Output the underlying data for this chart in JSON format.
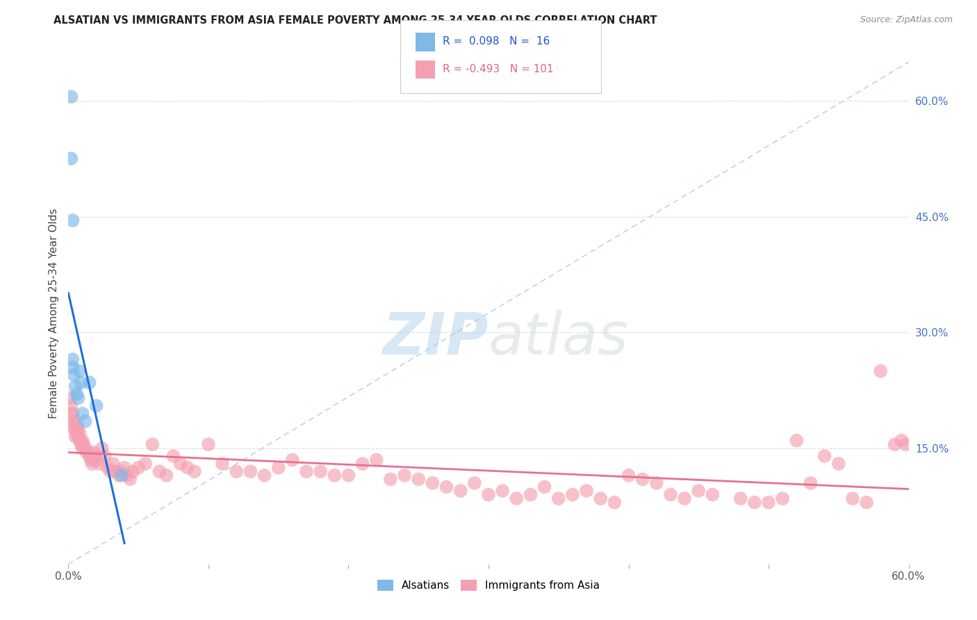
{
  "title": "ALSATIAN VS IMMIGRANTS FROM ASIA FEMALE POVERTY AMONG 25-34 YEAR OLDS CORRELATION CHART",
  "source": "Source: ZipAtlas.com",
  "ylabel": "Female Poverty Among 25-34 Year Olds",
  "xlim": [
    0.0,
    0.6
  ],
  "ylim": [
    0.0,
    0.65
  ],
  "y_tick_labels_right": [
    "15.0%",
    "30.0%",
    "45.0%",
    "60.0%"
  ],
  "y_tick_positions_right": [
    0.15,
    0.3,
    0.45,
    0.6
  ],
  "alsatian_color": "#7EB9E8",
  "immigrant_color": "#F4A0B0",
  "alsatian_line_color": "#1E6FD9",
  "immigrant_line_color": "#E87090",
  "dashed_line_color": "#A8C8E8",
  "legend_label1": "Alsatians",
  "legend_label2": "Immigrants from Asia",
  "alsatian_x": [
    0.002,
    0.002,
    0.003,
    0.003,
    0.003,
    0.004,
    0.005,
    0.006,
    0.007,
    0.008,
    0.009,
    0.01,
    0.012,
    0.015,
    0.02,
    0.038
  ],
  "alsatian_y": [
    0.605,
    0.525,
    0.445,
    0.265,
    0.255,
    0.245,
    0.23,
    0.22,
    0.215,
    0.25,
    0.235,
    0.195,
    0.185,
    0.235,
    0.205,
    0.115
  ],
  "immigrant_x": [
    0.001,
    0.002,
    0.002,
    0.003,
    0.003,
    0.004,
    0.004,
    0.005,
    0.005,
    0.006,
    0.006,
    0.007,
    0.007,
    0.008,
    0.008,
    0.009,
    0.01,
    0.01,
    0.011,
    0.012,
    0.013,
    0.014,
    0.015,
    0.016,
    0.017,
    0.018,
    0.019,
    0.02,
    0.022,
    0.024,
    0.026,
    0.028,
    0.03,
    0.032,
    0.034,
    0.036,
    0.038,
    0.04,
    0.042,
    0.044,
    0.046,
    0.05,
    0.055,
    0.06,
    0.065,
    0.07,
    0.075,
    0.08,
    0.085,
    0.09,
    0.1,
    0.11,
    0.12,
    0.13,
    0.14,
    0.15,
    0.16,
    0.17,
    0.18,
    0.19,
    0.2,
    0.21,
    0.22,
    0.23,
    0.24,
    0.25,
    0.26,
    0.27,
    0.28,
    0.29,
    0.3,
    0.31,
    0.32,
    0.33,
    0.34,
    0.35,
    0.36,
    0.37,
    0.38,
    0.39,
    0.4,
    0.41,
    0.42,
    0.43,
    0.44,
    0.45,
    0.46,
    0.48,
    0.49,
    0.5,
    0.51,
    0.52,
    0.53,
    0.54,
    0.55,
    0.56,
    0.57,
    0.58,
    0.59,
    0.595,
    0.598
  ],
  "immigrant_y": [
    0.215,
    0.195,
    0.205,
    0.195,
    0.185,
    0.185,
    0.175,
    0.175,
    0.165,
    0.17,
    0.18,
    0.165,
    0.175,
    0.16,
    0.17,
    0.155,
    0.16,
    0.15,
    0.155,
    0.15,
    0.145,
    0.145,
    0.14,
    0.135,
    0.13,
    0.145,
    0.14,
    0.135,
    0.13,
    0.15,
    0.14,
    0.125,
    0.12,
    0.13,
    0.12,
    0.115,
    0.12,
    0.125,
    0.115,
    0.11,
    0.12,
    0.125,
    0.13,
    0.155,
    0.12,
    0.115,
    0.14,
    0.13,
    0.125,
    0.12,
    0.155,
    0.13,
    0.12,
    0.12,
    0.115,
    0.125,
    0.135,
    0.12,
    0.12,
    0.115,
    0.115,
    0.13,
    0.135,
    0.11,
    0.115,
    0.11,
    0.105,
    0.1,
    0.095,
    0.105,
    0.09,
    0.095,
    0.085,
    0.09,
    0.1,
    0.085,
    0.09,
    0.095,
    0.085,
    0.08,
    0.115,
    0.11,
    0.105,
    0.09,
    0.085,
    0.095,
    0.09,
    0.085,
    0.08,
    0.08,
    0.085,
    0.16,
    0.105,
    0.14,
    0.13,
    0.085,
    0.08,
    0.25,
    0.155,
    0.16,
    0.155
  ],
  "alsatian_R": 0.098,
  "immigrant_R": -0.493,
  "watermark_text_zip": "ZIP",
  "watermark_text_atlas": "atlas",
  "grid_color": "#DDDDDD",
  "background_color": "#FFFFFF"
}
